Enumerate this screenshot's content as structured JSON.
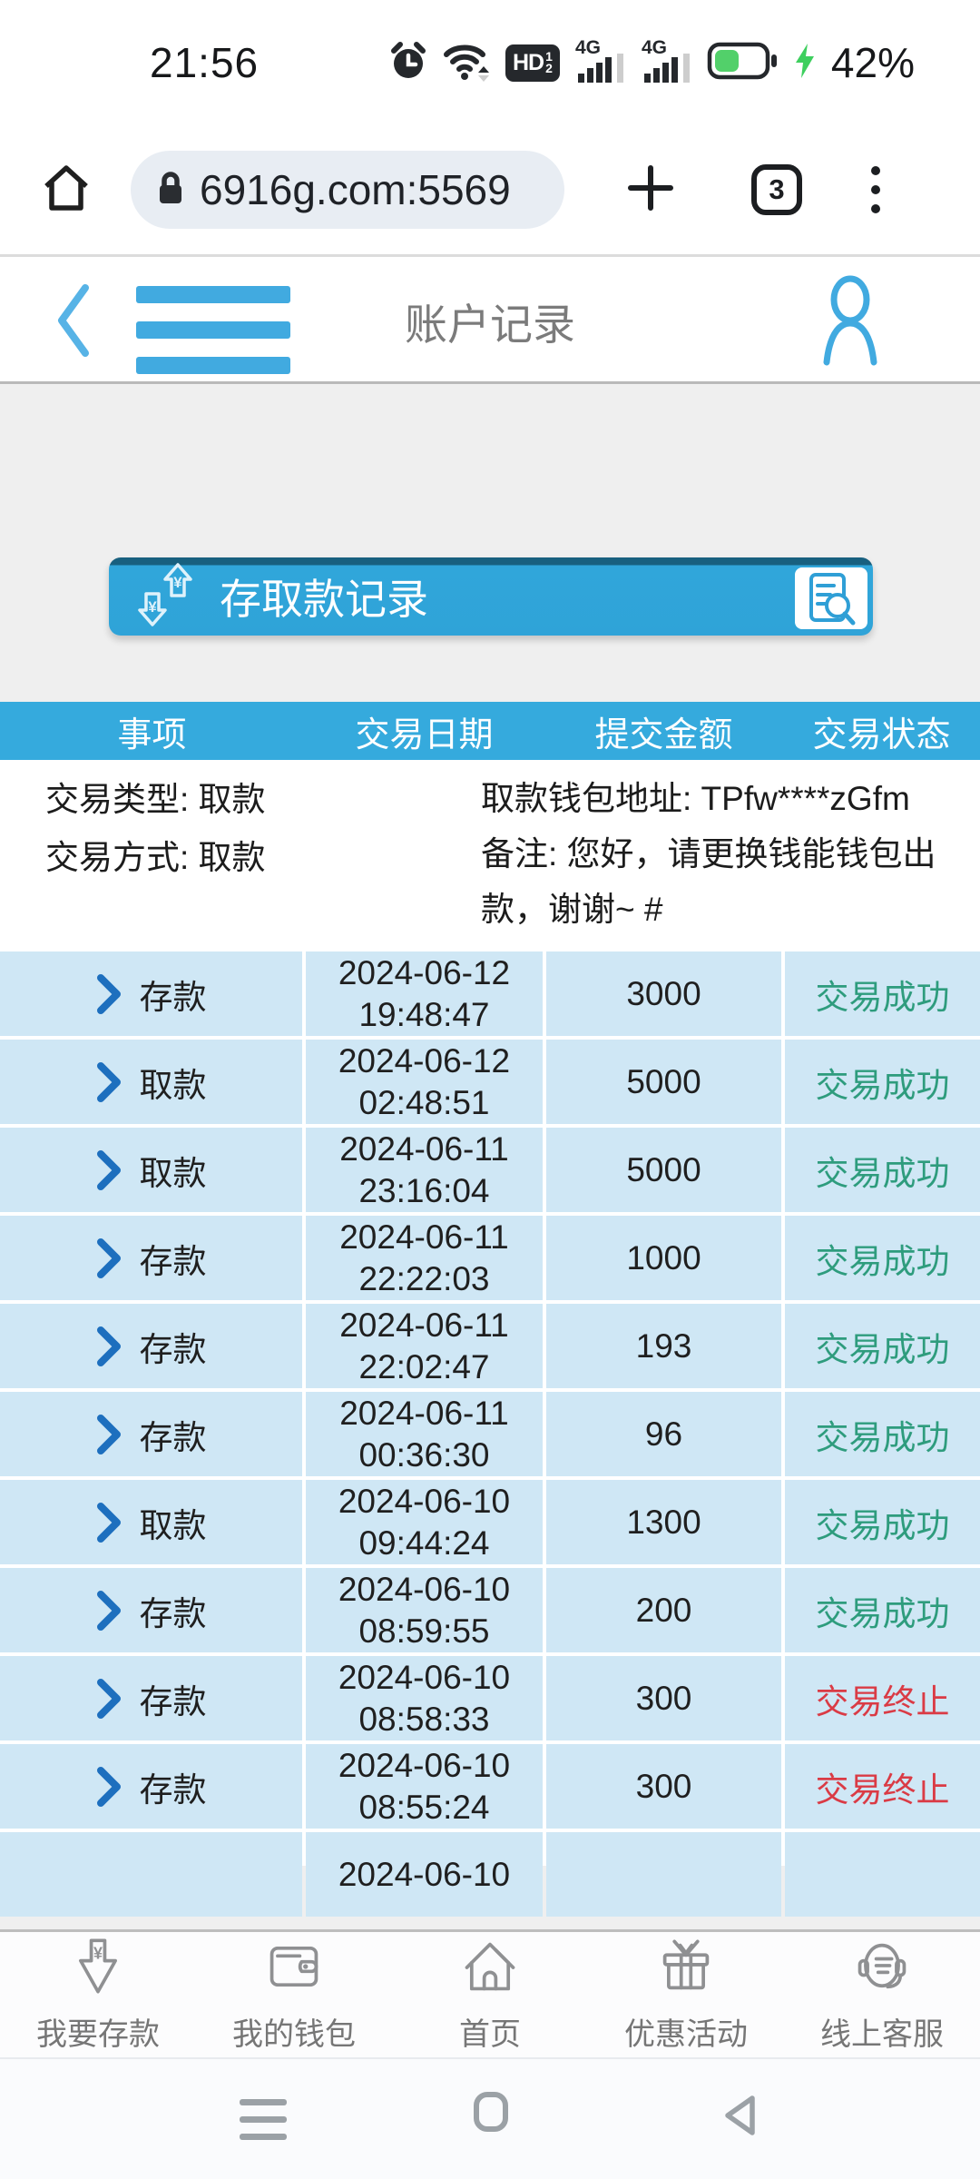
{
  "status_bar": {
    "time": "21:56",
    "network": "4G",
    "hd": {
      "label": "HD",
      "sup": "1",
      "sub": "2"
    },
    "battery_percent": "42%"
  },
  "browser": {
    "url": "6916g.com:5569",
    "tab_count": "3"
  },
  "app_header": {
    "title": "账户记录"
  },
  "section": {
    "title": "存取款记录"
  },
  "table": {
    "headers": [
      "事项",
      "交易日期",
      "提交金额",
      "交易状态"
    ],
    "detail": {
      "type": "交易类型: 取款",
      "method": "交易方式: 取款",
      "wallet": "取款钱包地址: TPfw****zGfm",
      "remark_line1": "备注: 您好，请更换钱能钱包出",
      "remark_line2": "款，谢谢~ #"
    },
    "rows": [
      {
        "type": "存款",
        "date": "2024-06-12",
        "time": "19:48:47",
        "amount": "3000",
        "status": "交易成功",
        "state": "success"
      },
      {
        "type": "取款",
        "date": "2024-06-12",
        "time": "02:48:51",
        "amount": "5000",
        "status": "交易成功",
        "state": "success"
      },
      {
        "type": "取款",
        "date": "2024-06-11",
        "time": "23:16:04",
        "amount": "5000",
        "status": "交易成功",
        "state": "success"
      },
      {
        "type": "存款",
        "date": "2024-06-11",
        "time": "22:22:03",
        "amount": "1000",
        "status": "交易成功",
        "state": "success"
      },
      {
        "type": "存款",
        "date": "2024-06-11",
        "time": "22:02:47",
        "amount": "193",
        "status": "交易成功",
        "state": "success"
      },
      {
        "type": "存款",
        "date": "2024-06-11",
        "time": "00:36:30",
        "amount": "96",
        "status": "交易成功",
        "state": "success"
      },
      {
        "type": "取款",
        "date": "2024-06-10",
        "time": "09:44:24",
        "amount": "1300",
        "status": "交易成功",
        "state": "success"
      },
      {
        "type": "存款",
        "date": "2024-06-10",
        "time": "08:59:55",
        "amount": "200",
        "status": "交易成功",
        "state": "success"
      },
      {
        "type": "存款",
        "date": "2024-06-10",
        "time": "08:58:33",
        "amount": "300",
        "status": "交易终止",
        "state": "terminated"
      },
      {
        "type": "存款",
        "date": "2024-06-10",
        "time": "08:55:24",
        "amount": "300",
        "status": "交易终止",
        "state": "terminated"
      }
    ],
    "partial_row": {
      "date": "2024-06-10"
    }
  },
  "bottom_nav": {
    "items": [
      {
        "label": "我要存款",
        "icon": "deposit-icon"
      },
      {
        "label": "我的钱包",
        "icon": "wallet-icon"
      },
      {
        "label": "首页",
        "icon": "home-icon"
      },
      {
        "label": "优惠活动",
        "icon": "promo-gift-icon"
      },
      {
        "label": "线上客服",
        "icon": "customer-service-icon"
      }
    ]
  },
  "icons": {
    "alarm-icon": "⏰",
    "wifi-icon": "wifi arcs",
    "hd-voice-badge": "HD 1/2",
    "signal-icon": "4G bars",
    "battery-icon": "battery 42% green",
    "charging-bolt-icon": "⚡",
    "lock-icon": "🔒",
    "browser-home-icon": "house outline",
    "new-tab-icon": "+",
    "tab-switcher-icon": "3 in square",
    "overflow-menu-icon": "⋮",
    "back-chevron-icon": "‹",
    "hamburger-menu-icon": "☰",
    "profile-icon": "person outline",
    "deposit-withdraw-icon": "¥ arrows",
    "search-records-icon": "doc + magnifier",
    "chevron-right-icon": "›",
    "recents-icon": "≡",
    "android-home-icon": "▢",
    "android-back-icon": "◁"
  },
  "colors": {
    "accent_blue": "#35aadd",
    "section_dark_blue": "#18607f",
    "row_blue": "#cfe7f5",
    "link_blue": "#1d6fbe",
    "success_green": "#2e9c7d",
    "terminated_red": "#da3b45",
    "nav_icon_blue": "#41aae0",
    "battery_green": "#52d06a",
    "page_gray": "#efefef"
  }
}
